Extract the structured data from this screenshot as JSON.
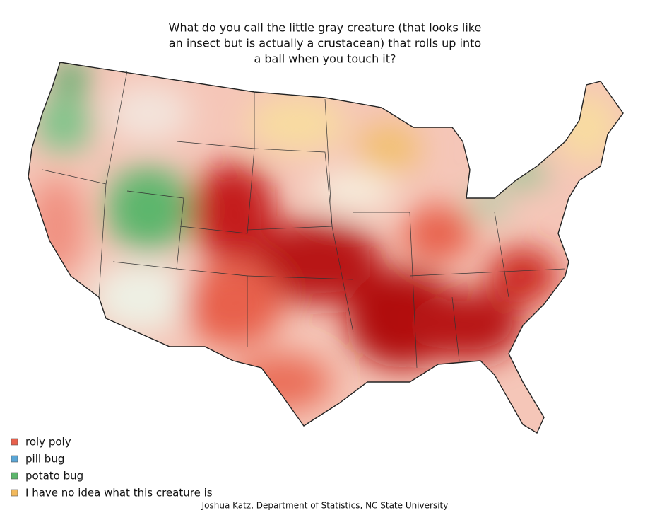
{
  "title_lines": [
    "What do you call the little gray creature (that looks like",
    "an insect but is actually a crustacean) that rolls up into",
    "a ball when you touch it?"
  ],
  "legend": [
    {
      "label": "roly poly",
      "color": "#e8604c"
    },
    {
      "label": "pill bug",
      "color": "#5aa6d6"
    },
    {
      "label": "potato bug",
      "color": "#5cb66c"
    },
    {
      "label": "I have no idea what this creature is",
      "color": "#f2b95c"
    }
  ],
  "credit": "Joshua Katz, Department of Statistics, NC State University"
}
